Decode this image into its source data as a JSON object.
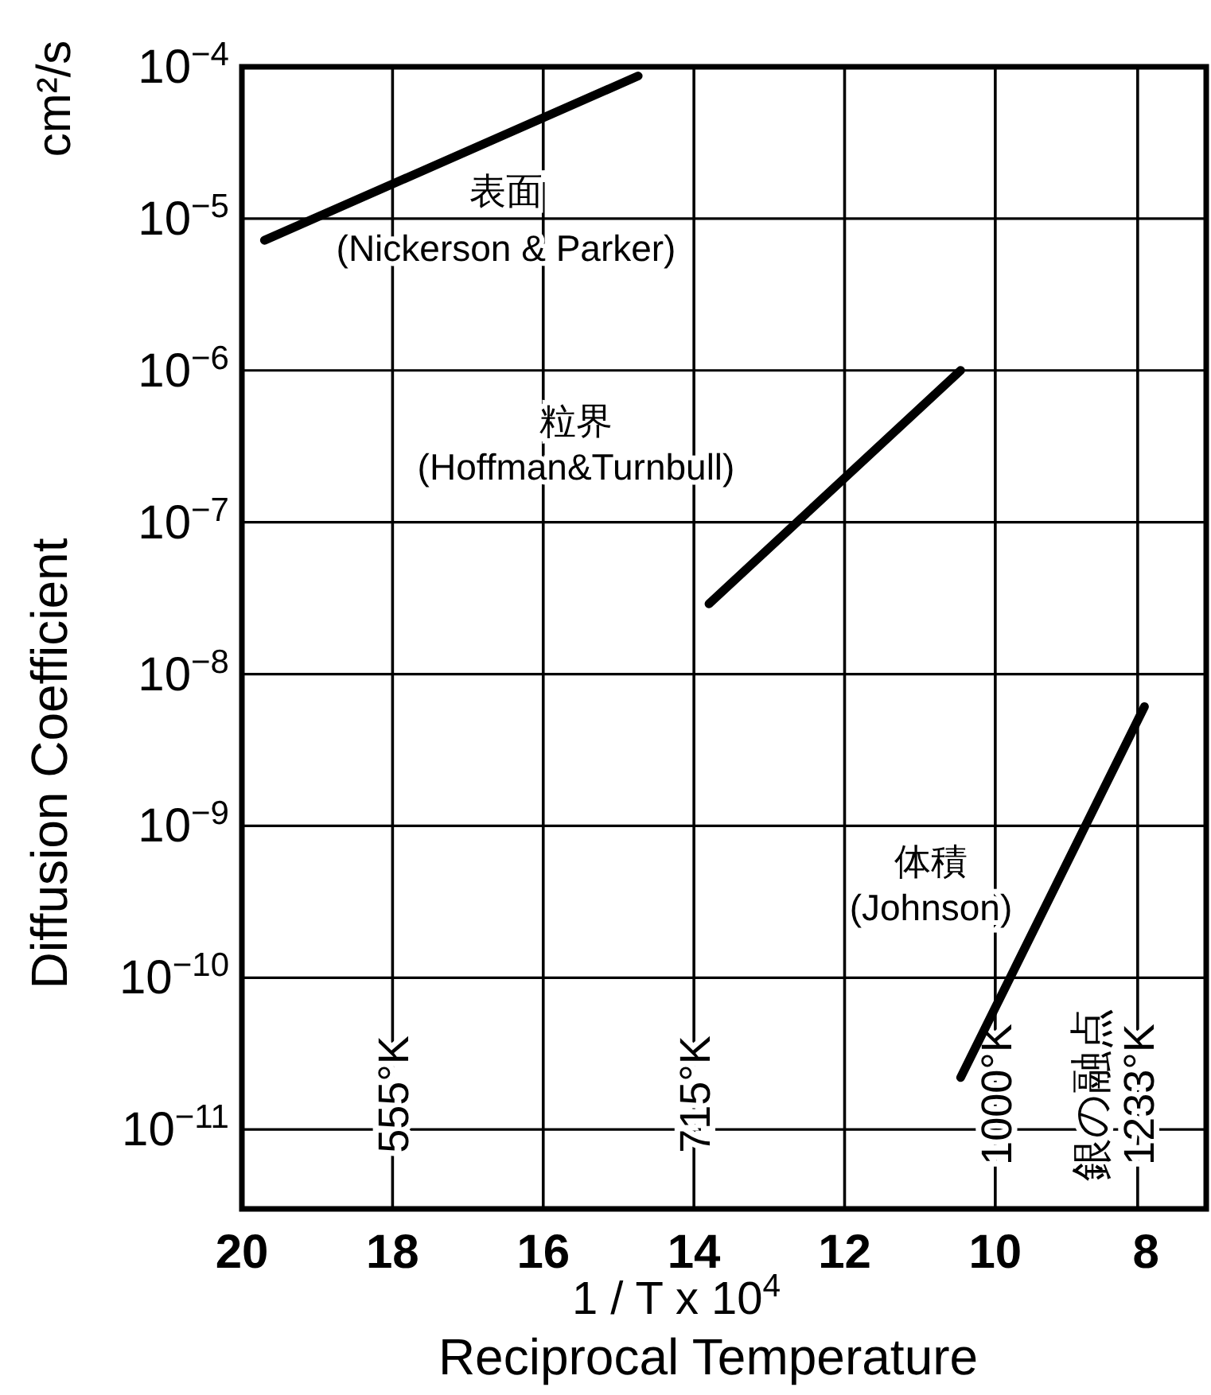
{
  "chart_data": {
    "type": "line",
    "ylabel": "Diffusion Coefficient",
    "xlabel": "1 / T x 10$^{4}$",
    "annotations": [
      "cm²/s",
      "Reciprocal Temperature",
      "表面\n(Nickerson & Parker)",
      "粒界\n(Hoffman&Turnbull)",
      "体積\n(Johnson)"
    ],
    "series": [
      {
        "color": "#000000",
        "x": [
          19.7,
          14.74
        ],
        "values": [
          7.2e-06,
          8.7e-05
        ]
      },
      {
        "color": "#000000",
        "x": [
          13.8,
          10.46
        ],
        "values": [
          2.9e-08,
          1e-06
        ]
      },
      {
        "color": "#000000",
        "x": [
          10.46,
          8.02
        ],
        "values": [
          2.2e-11,
          6.1e-09
        ]
      }
    ],
    "log": "y",
    "xlim": [
      20,
      7.2
    ],
    "ylim": [
      3e-12,
      0.0001
    ],
    "xticks": [
      20,
      18,
      16,
      14,
      12,
      10,
      8
    ],
    "yticks": [
      {
        "value": 0.0001,
        "label": "10$^{−4}$"
      },
      {
        "value": 1e-05,
        "label": "10$^{−5}$"
      },
      {
        "value": 1e-06,
        "label": "10$^{−6}$"
      },
      {
        "value": 1e-07,
        "label": "10$^{−7}$"
      },
      {
        "value": 1e-08,
        "label": "10$^{−8}$"
      },
      {
        "value": 1e-09,
        "label": "10$^{−9}$"
      },
      {
        "value": 1e-10,
        "label": "10$^{−10}$"
      },
      {
        "value": 1e-11,
        "label": "10$^{−11}$"
      }
    ],
    "grid": "y",
    "marker": "none",
    "line_style": "solid",
    "ref_lines": [
      {
        "axis": "x",
        "value": 16
      },
      {
        "axis": "x",
        "value": 12
      },
      {
        "axis": "x",
        "value": 18,
        "label": "555°K"
      },
      {
        "axis": "x",
        "value": 14,
        "label": "715°K"
      },
      {
        "axis": "x",
        "value": 10,
        "label": "1000°K"
      },
      {
        "axis": "x",
        "value": 8.11,
        "label": "銀の融点\n1233°K"
      }
    ]
  }
}
